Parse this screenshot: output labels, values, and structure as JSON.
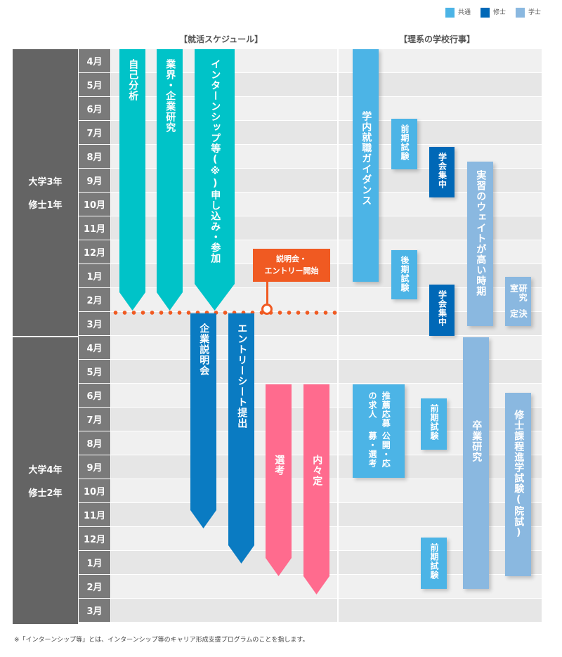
{
  "legend": [
    {
      "label": "共通",
      "color": "#4cb4e6"
    },
    {
      "label": "修士",
      "color": "#0068b7"
    },
    {
      "label": "学士",
      "color": "#8ab8e0"
    }
  ],
  "headers": {
    "job": "【就活スケジュール】",
    "school": "【理系の学校行事】"
  },
  "years": [
    {
      "line1": "大学3年",
      "line2": "修士1年"
    },
    {
      "line1": "大学4年",
      "line2": "修士2年"
    }
  ],
  "months": [
    "4月",
    "5月",
    "6月",
    "7月",
    "8月",
    "9月",
    "10月",
    "11月",
    "12月",
    "1月",
    "2月",
    "3月",
    "4月",
    "5月",
    "6月",
    "7月",
    "8月",
    "9月",
    "10月",
    "11月",
    "12月",
    "1月",
    "2月",
    "3月"
  ],
  "job": {
    "self": "自己分析",
    "industry": "業界・企業研究",
    "intern": {
      "l1": "インターンシップ等(※)",
      "l2": "申し込み・参加"
    },
    "seminar": "企業説明会",
    "es": "エントリーシート提出",
    "select": "選考",
    "offer": "内々定",
    "callout": {
      "l1": "説明会・",
      "l2": "エントリー開始"
    }
  },
  "school": {
    "guidance": "学内就職ガイダンス",
    "exam1": "前期試験",
    "conf1": "学会集中",
    "practice": "実習のウェイトが高い時期",
    "exam2": "後期試験",
    "conf2": "学会集中",
    "lab": {
      "l1": "研究室",
      "l2": "決定"
    },
    "recommend": {
      "l1": "推薦応募の求人",
      "l2": "公開・応募・選考"
    },
    "exam3": "前期試験",
    "thesis": "卒業研究",
    "grad_exam": "修士課程進学試験(院試)",
    "exam4": "前期試験"
  },
  "footnote": "※「インターンシップ等」とは、インターンシップ等のキャリア形成支援プログラムのことを指します。",
  "colors": {
    "teal": "#00c3c8",
    "common": "#4cb4e6",
    "master": "#0068b7",
    "bachelor": "#8ab8e0",
    "pink": "#ff6b8e",
    "darkblue": "#0a7bc2",
    "orange": "#f05a22"
  }
}
